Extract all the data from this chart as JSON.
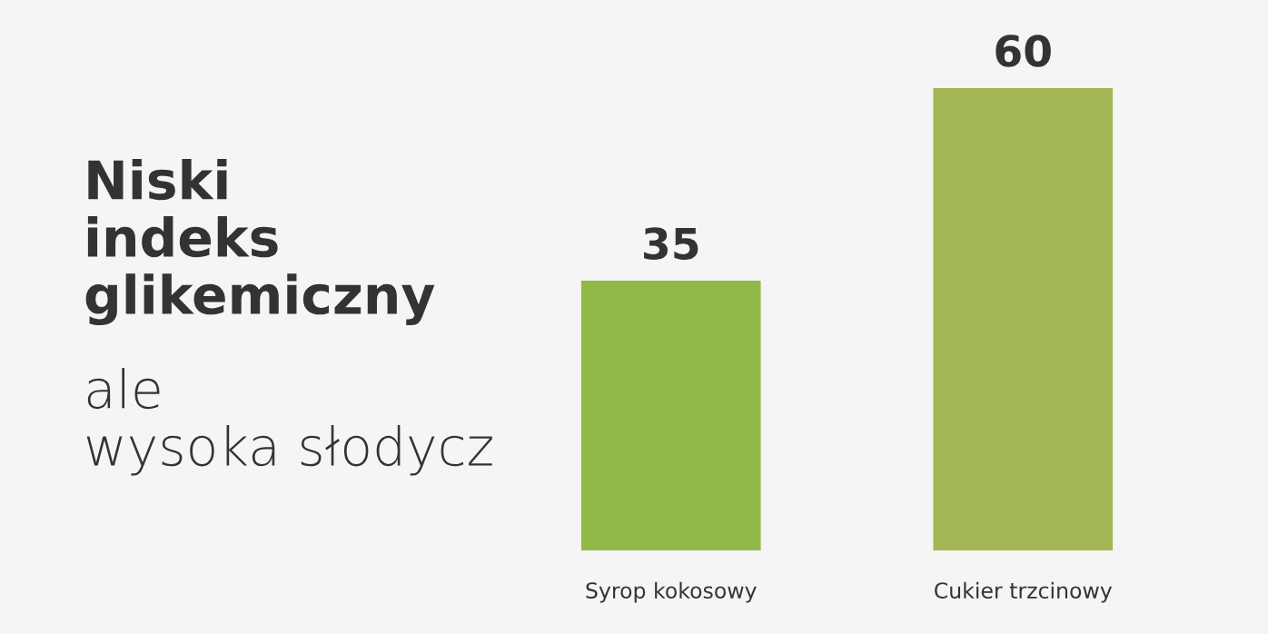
{
  "chart_data": {
    "type": "bar",
    "title": "Niski indeks glikemiczny",
    "subtitle": "ale wysoka słodycz",
    "categories": [
      "Syrop kokosowy",
      "Cukier trzcinowy"
    ],
    "values": [
      35,
      60
    ],
    "colors": [
      "#8fba4a",
      "#a3b855"
    ],
    "data_labels": true,
    "grid": false,
    "legend": false
  }
}
